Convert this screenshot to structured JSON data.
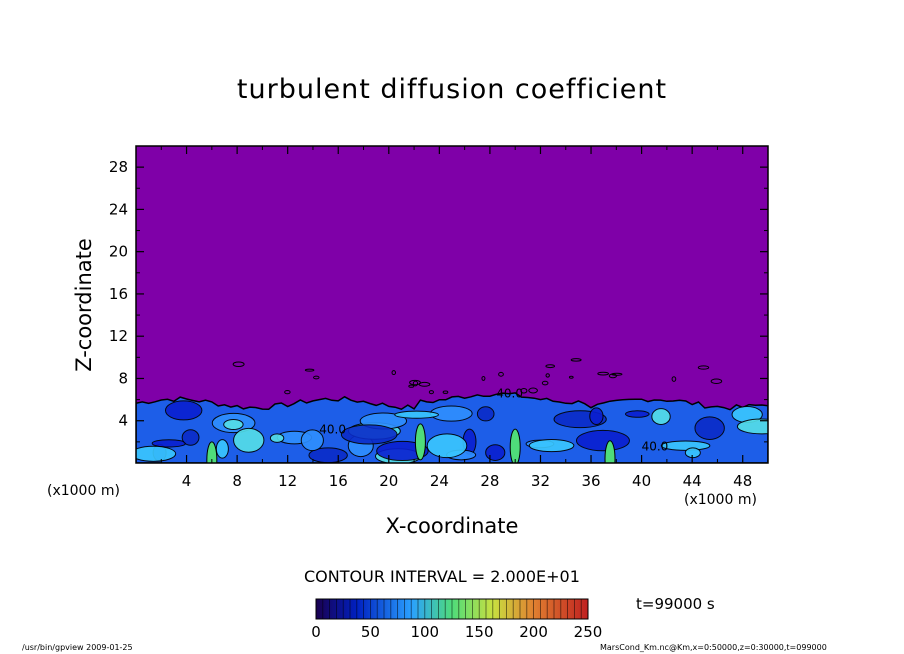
{
  "chart_data": {
    "type": "heatmap",
    "title": "turbulent diffusion coefficient",
    "xlabel": "X-coordinate",
    "ylabel": "Z-coordinate",
    "x_unit": "(x1000 m)",
    "xlim": [
      0,
      50
    ],
    "ylim": [
      0,
      30
    ],
    "x_ticks": [
      "4",
      "8",
      "12",
      "16",
      "20",
      "24",
      "28",
      "32",
      "36",
      "40",
      "44",
      "48"
    ],
    "y_ticks": [
      "4",
      "8",
      "12",
      "16",
      "20",
      "24",
      "28"
    ],
    "contour_labels": [
      "40.0",
      "40.0",
      "40.0"
    ],
    "colorbar": {
      "min": 0,
      "max": 250,
      "ticks": [
        "0",
        "50",
        "100",
        "150",
        "200",
        "250"
      ]
    },
    "contour_interval": "CONTOUR INTERVAL = 2.000E+01",
    "time_label": "t=99000 s",
    "background_color": "#7f00a8",
    "turbulent_layer_top_km": 6,
    "footer_left": "/usr/bin/gpview  2009-01-25",
    "footer_right": "MarsCond_Km.nc@Km,x=0:50000,z=0:30000,t=099000"
  }
}
